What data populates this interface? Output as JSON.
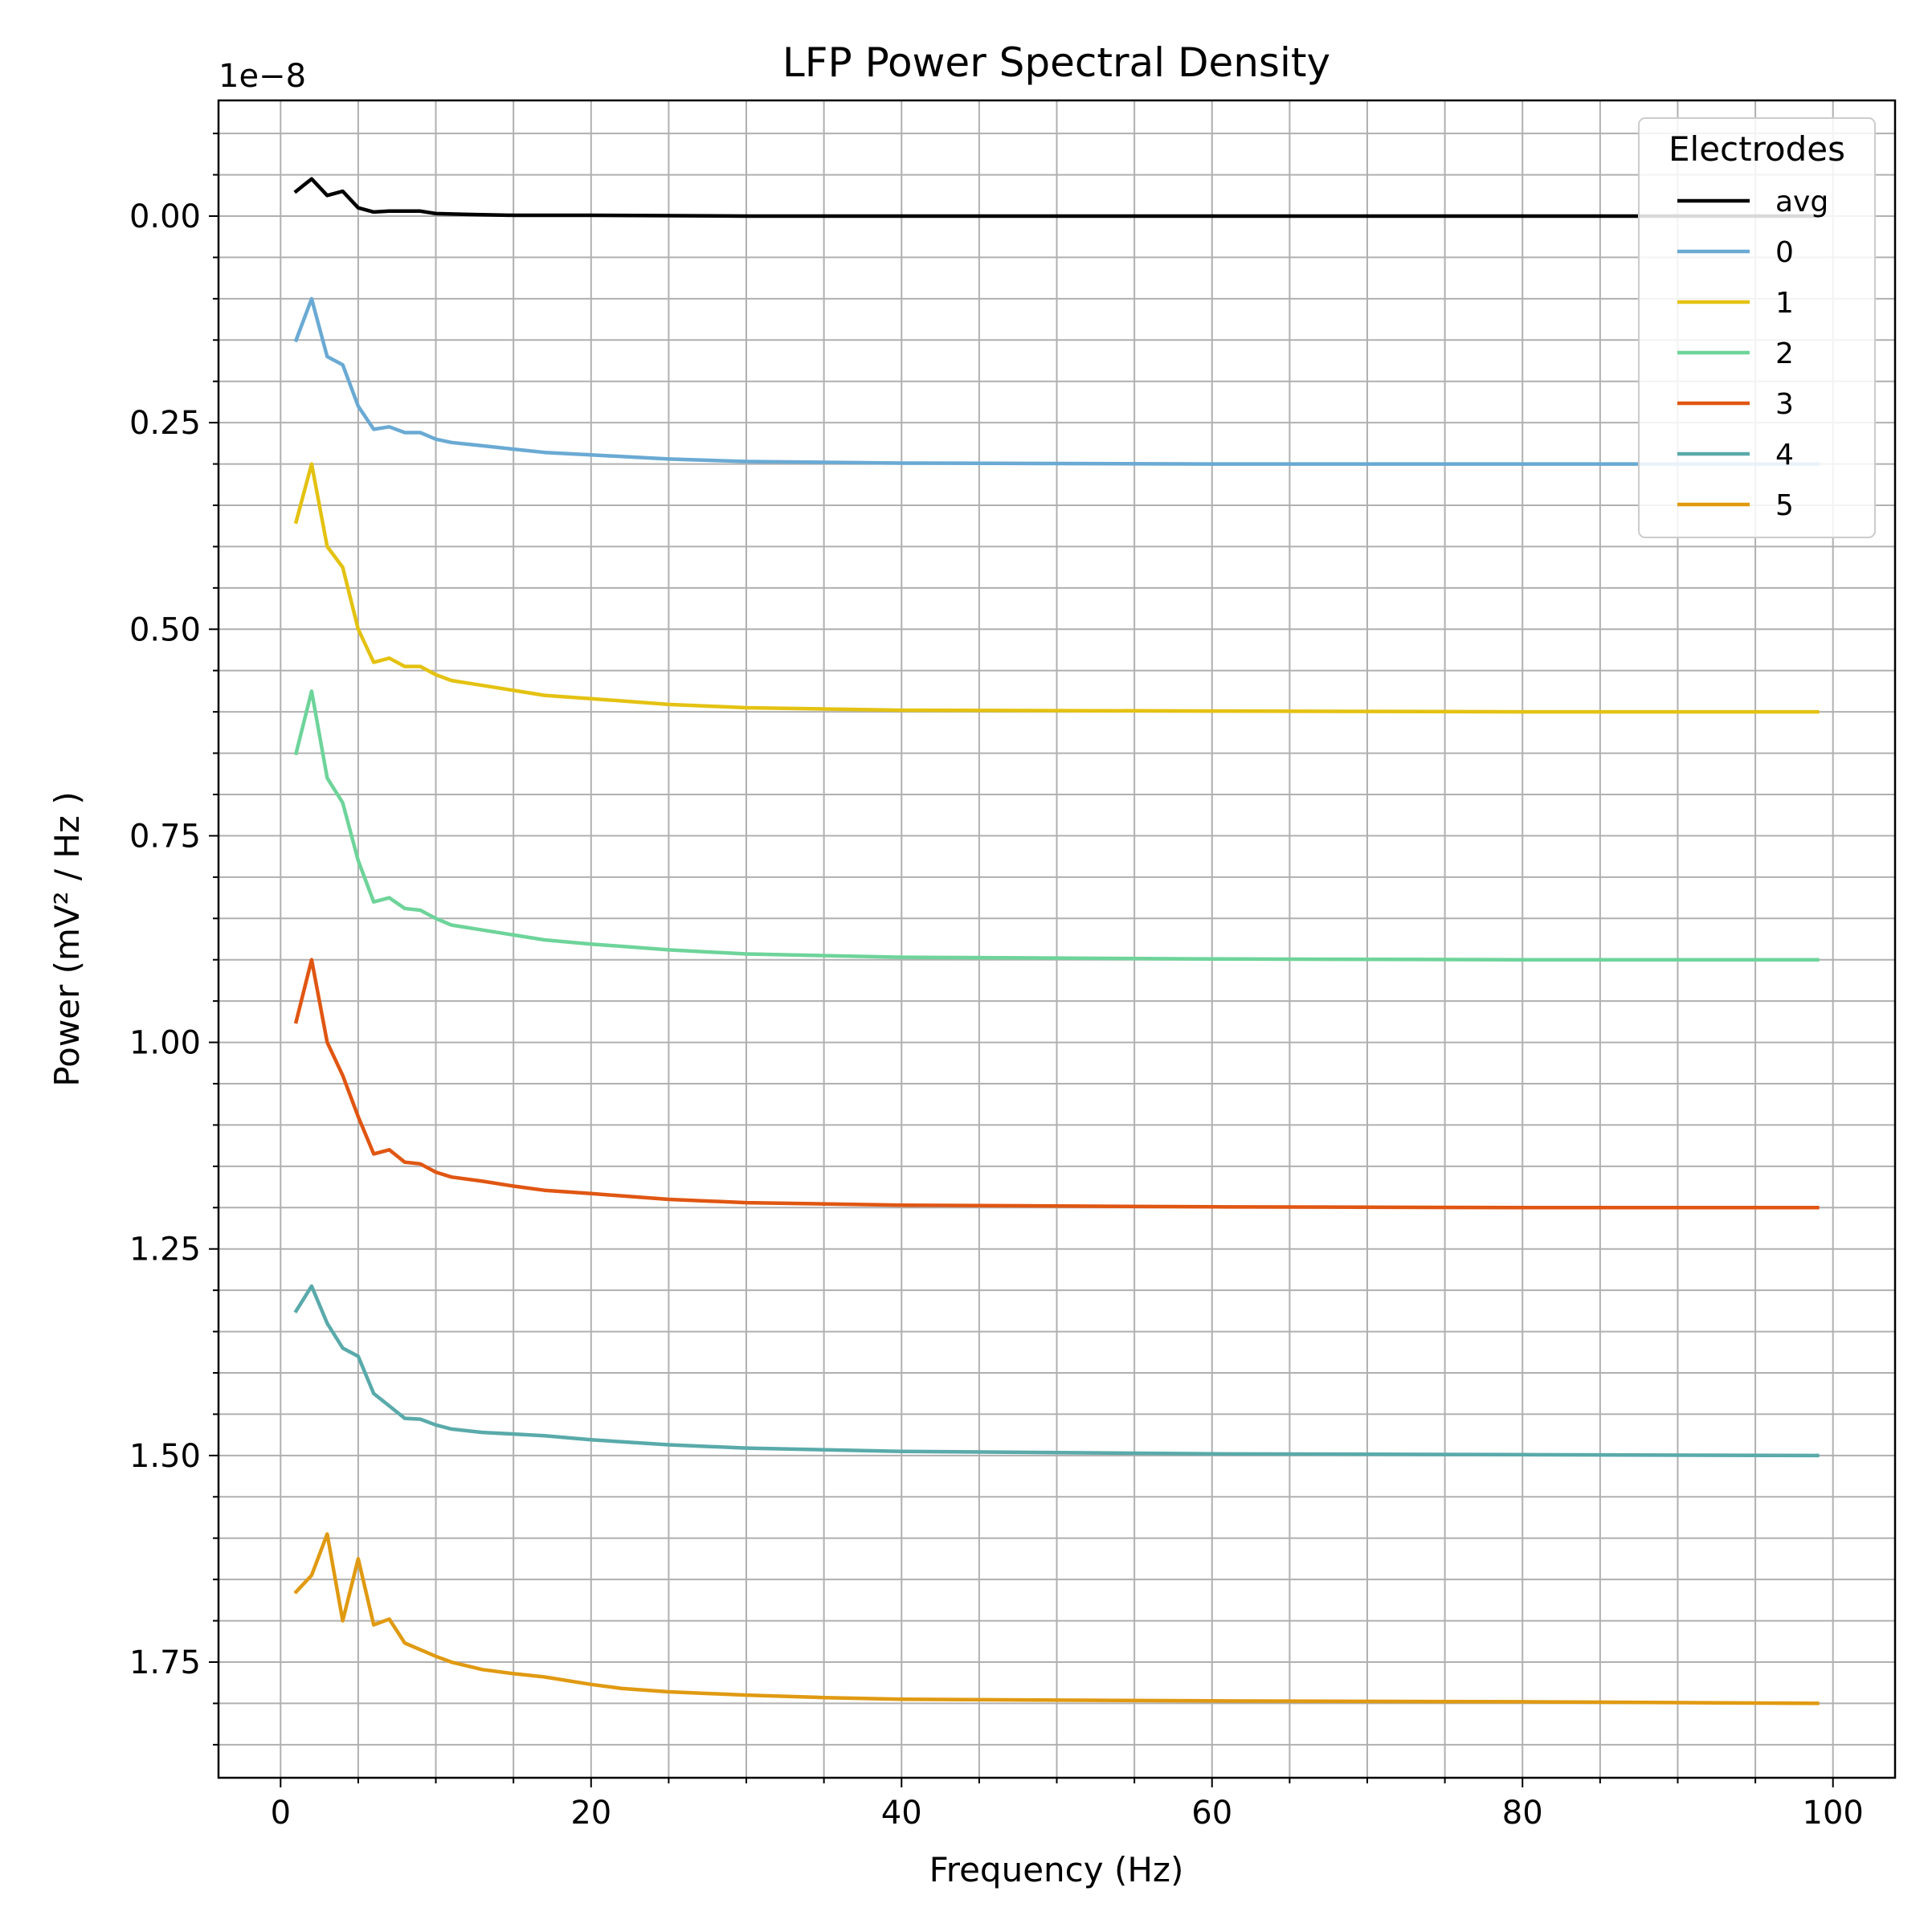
{
  "chart_data": {
    "type": "line",
    "title": "LFP Power Spectral Density",
    "xlabel": "Frequency (Hz)",
    "ylabel": "Power (mV² / Hz )",
    "offset_text": "1e−8",
    "xlim": [
      -4,
      104
    ],
    "ylim": [
      1.89,
      -0.14
    ],
    "y_inverted": true,
    "grid": true,
    "x_ticks": [
      0,
      20,
      40,
      60,
      80,
      100
    ],
    "x_tick_labels": [
      "0",
      "20",
      "40",
      "60",
      "80",
      "100"
    ],
    "y_ticks": [
      0,
      0.25,
      0.5,
      0.75,
      1.0,
      1.25,
      1.5,
      1.75
    ],
    "y_tick_labels": [
      "0.00",
      "0.25",
      "0.50",
      "0.75",
      "1.00",
      "1.25",
      "1.50",
      "1.75"
    ],
    "legend": {
      "title": "Electrodes",
      "placement": "top-right"
    },
    "series": [
      {
        "name": "avg",
        "color": "#000000",
        "x": [
          1,
          2,
          3,
          4,
          5,
          6,
          7,
          8,
          9,
          10,
          12,
          15,
          20,
          30,
          40,
          60,
          80,
          99
        ],
        "y": [
          -0.03,
          -0.045,
          -0.025,
          -0.03,
          -0.01,
          -0.005,
          -0.006,
          -0.006,
          -0.006,
          -0.003,
          -0.002,
          -0.001,
          -0.001,
          0.0,
          0.0,
          0.0,
          0.0,
          0.0
        ]
      },
      {
        "name": "0",
        "color": "#6aaad4",
        "x": [
          1,
          2,
          3,
          4,
          5,
          6,
          7,
          8,
          9,
          10,
          11,
          13,
          15,
          17,
          20,
          25,
          30,
          40,
          60,
          80,
          99
        ],
        "y": [
          0.15,
          0.1,
          0.17,
          0.18,
          0.23,
          0.258,
          0.255,
          0.262,
          0.262,
          0.27,
          0.274,
          0.278,
          0.282,
          0.286,
          0.289,
          0.294,
          0.297,
          0.299,
          0.3,
          0.3,
          0.3
        ]
      },
      {
        "name": "1",
        "color": "#e4c212",
        "x": [
          1,
          2,
          3,
          4,
          5,
          6,
          7,
          8,
          9,
          10,
          11,
          13,
          15,
          17,
          20,
          25,
          30,
          40,
          60,
          80,
          99
        ],
        "y": [
          0.37,
          0.3,
          0.4,
          0.425,
          0.5,
          0.54,
          0.535,
          0.545,
          0.545,
          0.555,
          0.562,
          0.568,
          0.574,
          0.58,
          0.584,
          0.591,
          0.595,
          0.598,
          0.599,
          0.6,
          0.6
        ]
      },
      {
        "name": "2",
        "color": "#6ed49a",
        "x": [
          1,
          2,
          3,
          4,
          5,
          6,
          7,
          8,
          9,
          10,
          11,
          13,
          15,
          17,
          20,
          25,
          30,
          40,
          60,
          80,
          99
        ],
        "y": [
          0.65,
          0.575,
          0.68,
          0.71,
          0.78,
          0.83,
          0.825,
          0.838,
          0.84,
          0.85,
          0.858,
          0.864,
          0.87,
          0.876,
          0.881,
          0.888,
          0.893,
          0.897,
          0.899,
          0.9,
          0.9
        ]
      },
      {
        "name": "3",
        "color": "#e05612",
        "x": [
          1,
          2,
          3,
          4,
          5,
          6,
          7,
          8,
          9,
          10,
          11,
          13,
          15,
          17,
          20,
          25,
          30,
          40,
          60,
          80,
          99
        ],
        "y": [
          0.975,
          0.9,
          1.0,
          1.04,
          1.09,
          1.135,
          1.13,
          1.145,
          1.147,
          1.157,
          1.163,
          1.168,
          1.174,
          1.179,
          1.183,
          1.19,
          1.194,
          1.197,
          1.199,
          1.2,
          1.2
        ]
      },
      {
        "name": "4",
        "color": "#5aaaaa",
        "x": [
          1,
          2,
          3,
          4,
          5,
          6,
          7,
          8,
          9,
          10,
          11,
          13,
          15,
          17,
          20,
          25,
          30,
          40,
          60,
          80,
          99
        ],
        "y": [
          1.325,
          1.295,
          1.34,
          1.37,
          1.38,
          1.425,
          1.44,
          1.455,
          1.456,
          1.463,
          1.468,
          1.472,
          1.474,
          1.476,
          1.481,
          1.487,
          1.491,
          1.495,
          1.498,
          1.499,
          1.5
        ]
      },
      {
        "name": "5",
        "color": "#e09a12",
        "x": [
          1,
          2,
          3,
          4,
          5,
          6,
          7,
          8,
          9,
          10,
          11,
          13,
          15,
          17,
          20,
          22,
          25,
          30,
          35,
          40,
          60,
          80,
          99
        ],
        "y": [
          1.665,
          1.645,
          1.595,
          1.7,
          1.625,
          1.705,
          1.698,
          1.727,
          1.735,
          1.743,
          1.75,
          1.759,
          1.764,
          1.768,
          1.777,
          1.782,
          1.786,
          1.79,
          1.793,
          1.795,
          1.797,
          1.798,
          1.8
        ]
      }
    ]
  }
}
